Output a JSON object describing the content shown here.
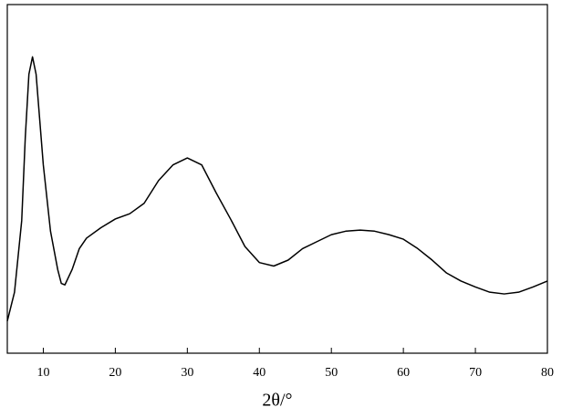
{
  "chart_data": {
    "type": "line",
    "x_label": "2θ/°",
    "x": [
      5,
      6,
      7,
      7.5,
      8,
      8.5,
      9,
      9.5,
      10,
      11,
      12,
      12.5,
      13,
      14,
      15,
      16,
      18,
      20,
      22,
      24,
      26,
      28,
      30,
      32,
      34,
      36,
      38,
      40,
      42,
      44,
      46,
      48,
      50,
      52,
      54,
      56,
      58,
      60,
      62,
      64,
      66,
      68,
      70,
      72,
      74,
      76,
      78,
      80
    ],
    "series": [
      {
        "color": "#000000",
        "values": [
          9.2,
          17.5,
          38,
          62,
          80,
          85,
          80,
          67,
          54,
          35,
          24,
          20,
          19.6,
          24,
          30,
          33,
          36,
          38.5,
          40,
          43,
          49.5,
          54,
          56,
          54,
          46,
          38.5,
          30.6,
          26,
          25,
          26.7,
          30,
          32,
          34,
          35,
          35.3,
          35,
          34,
          32.7,
          30,
          26.7,
          23,
          20.7,
          19,
          17.5,
          17,
          17.5,
          19,
          20.7
        ]
      }
    ],
    "xlim": [
      5,
      80
    ],
    "xticks": [
      10,
      20,
      30,
      40,
      50,
      60,
      70,
      80
    ],
    "ylim": [
      0,
      100
    ],
    "grid": false
  }
}
